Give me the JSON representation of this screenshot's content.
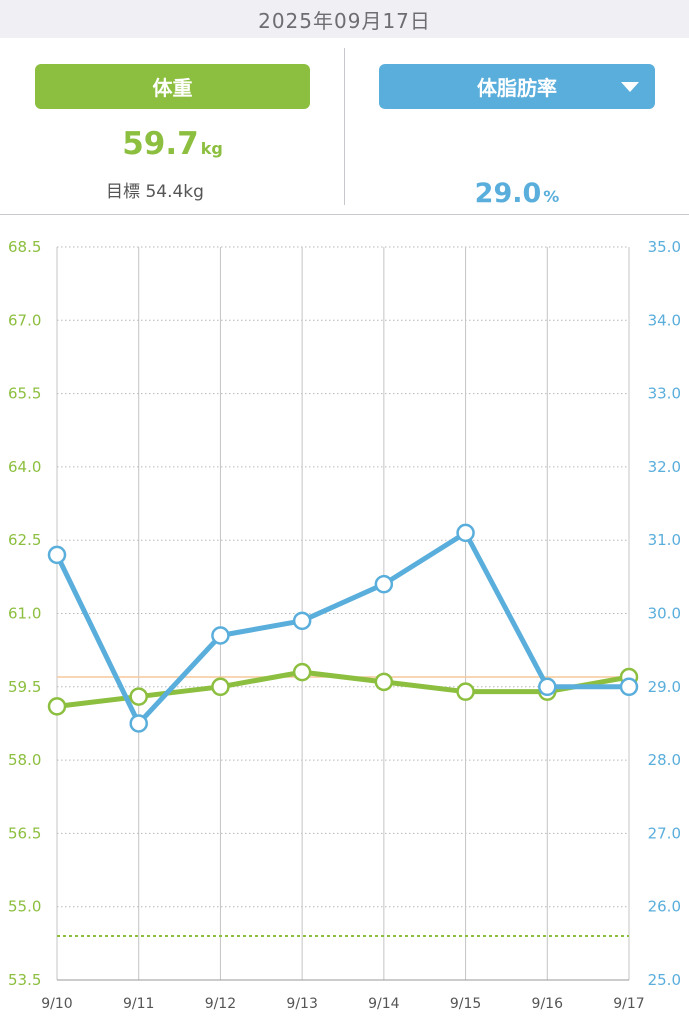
{
  "header": {
    "date": "2025年09月17日"
  },
  "summary": {
    "weight_label": "体重",
    "weight_value": "59.7",
    "weight_unit": "kg",
    "goal_text": "目標 54.4kg",
    "fat_label": "体脂肪率",
    "fat_value": "29.0",
    "fat_unit": "%",
    "fat_dropdown_icon": "triangle-down-icon"
  },
  "colors": {
    "weight": "#8cbf3f",
    "fat": "#5aaedc",
    "current_line": "#f5c99a",
    "grid": "#b8b8b8"
  },
  "chart_data": {
    "type": "line",
    "categories": [
      "9/10",
      "9/11",
      "9/12",
      "9/13",
      "9/14",
      "9/15",
      "9/16",
      "9/17"
    ],
    "y_left": {
      "min": 53.5,
      "max": 68.5,
      "ticks": [
        "68.5",
        "67.0",
        "65.5",
        "64.0",
        "62.5",
        "61.0",
        "59.5",
        "58.0",
        "56.5",
        "55.0",
        "53.5"
      ]
    },
    "y_right": {
      "min": 25.0,
      "max": 35.0,
      "ticks": [
        "35.0",
        "34.0",
        "33.0",
        "32.0",
        "31.0",
        "30.0",
        "29.0",
        "28.0",
        "27.0",
        "26.0",
        "25.0"
      ]
    },
    "series": [
      {
        "axis": "left",
        "color": "#8cbf3f",
        "values": [
          59.1,
          59.3,
          59.5,
          59.8,
          59.6,
          59.4,
          59.4,
          59.7
        ]
      },
      {
        "axis": "right",
        "color": "#5aaedc",
        "values": [
          30.8,
          28.5,
          29.7,
          29.9,
          30.4,
          31.1,
          29.0,
          29.0
        ]
      }
    ],
    "goal_line": {
      "axis": "left",
      "value": 54.4
    },
    "current_line": {
      "axis": "left",
      "value": 59.7
    },
    "grid": true
  }
}
